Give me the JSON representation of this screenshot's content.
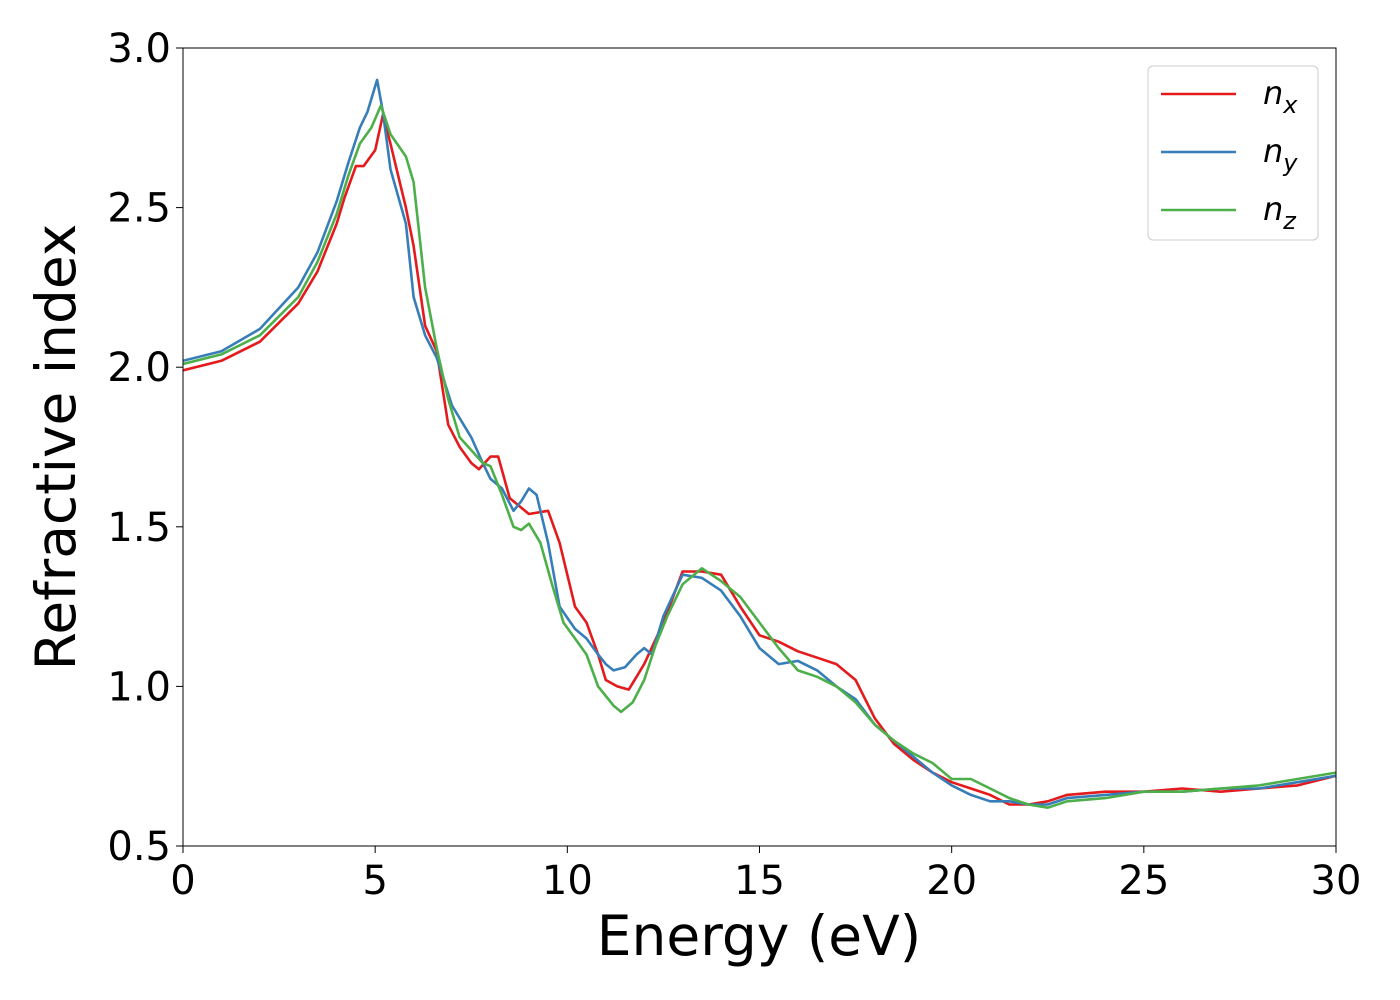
{
  "chart_data": {
    "type": "line",
    "title": "",
    "xlabel": "Energy (eV)",
    "ylabel": "Refractive index",
    "xlim": [
      0,
      30
    ],
    "ylim": [
      0.5,
      3.0
    ],
    "xticks": [
      0,
      5,
      10,
      15,
      20,
      25,
      30
    ],
    "yticks": [
      0.5,
      1.0,
      1.5,
      2.0,
      2.5,
      3.0
    ],
    "xtick_labels": [
      "0",
      "5",
      "10",
      "15",
      "20",
      "25",
      "30"
    ],
    "ytick_labels": [
      "0.5",
      "1.0",
      "1.5",
      "2.0",
      "2.5",
      "3.0"
    ],
    "grid": false,
    "legend_position": "top-right",
    "series": [
      {
        "name": "n_x",
        "label_base": "n",
        "label_sub": "x",
        "color": "#e41a1c",
        "x": [
          0,
          1,
          2,
          3,
          3.5,
          4,
          4.2,
          4.5,
          4.7,
          5.0,
          5.2,
          5.4,
          5.8,
          6.0,
          6.3,
          6.6,
          6.9,
          7.2,
          7.5,
          7.7,
          8.0,
          8.2,
          8.5,
          8.8,
          9.0,
          9.5,
          9.8,
          10.2,
          10.5,
          10.8,
          11.0,
          11.3,
          11.6,
          12.0,
          12.5,
          13.0,
          13.5,
          14.0,
          14.5,
          15.0,
          15.5,
          16.0,
          16.5,
          17.0,
          17.5,
          18.0,
          18.5,
          19.0,
          19.5,
          20.0,
          20.5,
          21.0,
          21.5,
          22.0,
          22.5,
          23.0,
          24.0,
          25.0,
          26.0,
          27.0,
          28.0,
          29.0,
          30.0
        ],
        "y": [
          1.99,
          2.02,
          2.08,
          2.2,
          2.3,
          2.45,
          2.53,
          2.63,
          2.63,
          2.68,
          2.79,
          2.7,
          2.5,
          2.38,
          2.13,
          2.05,
          1.82,
          1.75,
          1.7,
          1.68,
          1.72,
          1.72,
          1.59,
          1.56,
          1.54,
          1.55,
          1.45,
          1.25,
          1.2,
          1.1,
          1.02,
          1.0,
          0.99,
          1.07,
          1.2,
          1.36,
          1.36,
          1.35,
          1.25,
          1.16,
          1.14,
          1.11,
          1.09,
          1.07,
          1.02,
          0.9,
          0.82,
          0.77,
          0.73,
          0.7,
          0.68,
          0.66,
          0.63,
          0.63,
          0.64,
          0.66,
          0.67,
          0.67,
          0.68,
          0.67,
          0.68,
          0.69,
          0.72
        ]
      },
      {
        "name": "n_y",
        "label_base": "n",
        "label_sub": "y",
        "color": "#377eb8",
        "x": [
          0,
          1,
          2,
          3,
          3.5,
          4,
          4.3,
          4.6,
          4.8,
          5.05,
          5.2,
          5.4,
          5.8,
          6.0,
          6.3,
          6.6,
          7.0,
          7.3,
          7.5,
          7.8,
          8.0,
          8.3,
          8.6,
          8.8,
          9.0,
          9.2,
          9.5,
          9.8,
          10.2,
          10.5,
          10.8,
          11.0,
          11.2,
          11.5,
          11.8,
          12.0,
          12.2,
          12.5,
          13.0,
          13.5,
          14.0,
          14.5,
          15.0,
          15.5,
          16.0,
          16.5,
          17.0,
          17.5,
          18.0,
          18.5,
          19.0,
          19.5,
          20.0,
          20.5,
          21.0,
          21.5,
          22.0,
          22.5,
          23.0,
          24.0,
          25.0,
          26.0,
          27.0,
          28.0,
          29.0,
          30.0
        ],
        "y": [
          2.02,
          2.05,
          2.12,
          2.25,
          2.36,
          2.52,
          2.64,
          2.75,
          2.8,
          2.9,
          2.8,
          2.62,
          2.45,
          2.22,
          2.1,
          2.03,
          1.88,
          1.82,
          1.78,
          1.7,
          1.65,
          1.62,
          1.55,
          1.58,
          1.62,
          1.6,
          1.45,
          1.25,
          1.18,
          1.15,
          1.1,
          1.07,
          1.05,
          1.06,
          1.1,
          1.12,
          1.1,
          1.22,
          1.35,
          1.34,
          1.3,
          1.22,
          1.12,
          1.07,
          1.08,
          1.05,
          1.0,
          0.96,
          0.88,
          0.83,
          0.78,
          0.73,
          0.69,
          0.66,
          0.64,
          0.64,
          0.63,
          0.63,
          0.65,
          0.66,
          0.67,
          0.67,
          0.68,
          0.68,
          0.7,
          0.72
        ]
      },
      {
        "name": "n_z",
        "label_base": "n",
        "label_sub": "z",
        "color": "#4daf4a",
        "x": [
          0,
          1,
          2,
          3,
          3.5,
          4,
          4.3,
          4.6,
          4.9,
          5.15,
          5.4,
          5.8,
          6.0,
          6.3,
          6.6,
          6.9,
          7.2,
          7.5,
          7.8,
          8.0,
          8.3,
          8.6,
          8.8,
          9.0,
          9.3,
          9.6,
          9.9,
          10.2,
          10.5,
          10.8,
          11.0,
          11.2,
          11.4,
          11.7,
          12.0,
          12.3,
          12.6,
          13.0,
          13.5,
          14.0,
          14.5,
          15.0,
          15.5,
          16.0,
          16.5,
          17.0,
          17.5,
          18.0,
          18.5,
          19.0,
          19.5,
          20.0,
          20.5,
          21.0,
          21.5,
          22.0,
          22.5,
          23.0,
          24.0,
          25.0,
          26.0,
          27.0,
          28.0,
          29.0,
          30.0
        ],
        "y": [
          2.01,
          2.04,
          2.1,
          2.22,
          2.33,
          2.48,
          2.6,
          2.7,
          2.75,
          2.82,
          2.73,
          2.66,
          2.58,
          2.25,
          2.06,
          1.9,
          1.78,
          1.74,
          1.7,
          1.69,
          1.6,
          1.5,
          1.49,
          1.51,
          1.45,
          1.32,
          1.2,
          1.15,
          1.1,
          1.0,
          0.97,
          0.94,
          0.92,
          0.95,
          1.02,
          1.13,
          1.22,
          1.32,
          1.37,
          1.33,
          1.28,
          1.2,
          1.12,
          1.05,
          1.03,
          1.0,
          0.95,
          0.88,
          0.83,
          0.79,
          0.76,
          0.71,
          0.71,
          0.68,
          0.65,
          0.63,
          0.62,
          0.64,
          0.65,
          0.67,
          0.67,
          0.68,
          0.69,
          0.71,
          0.73
        ]
      }
    ]
  }
}
